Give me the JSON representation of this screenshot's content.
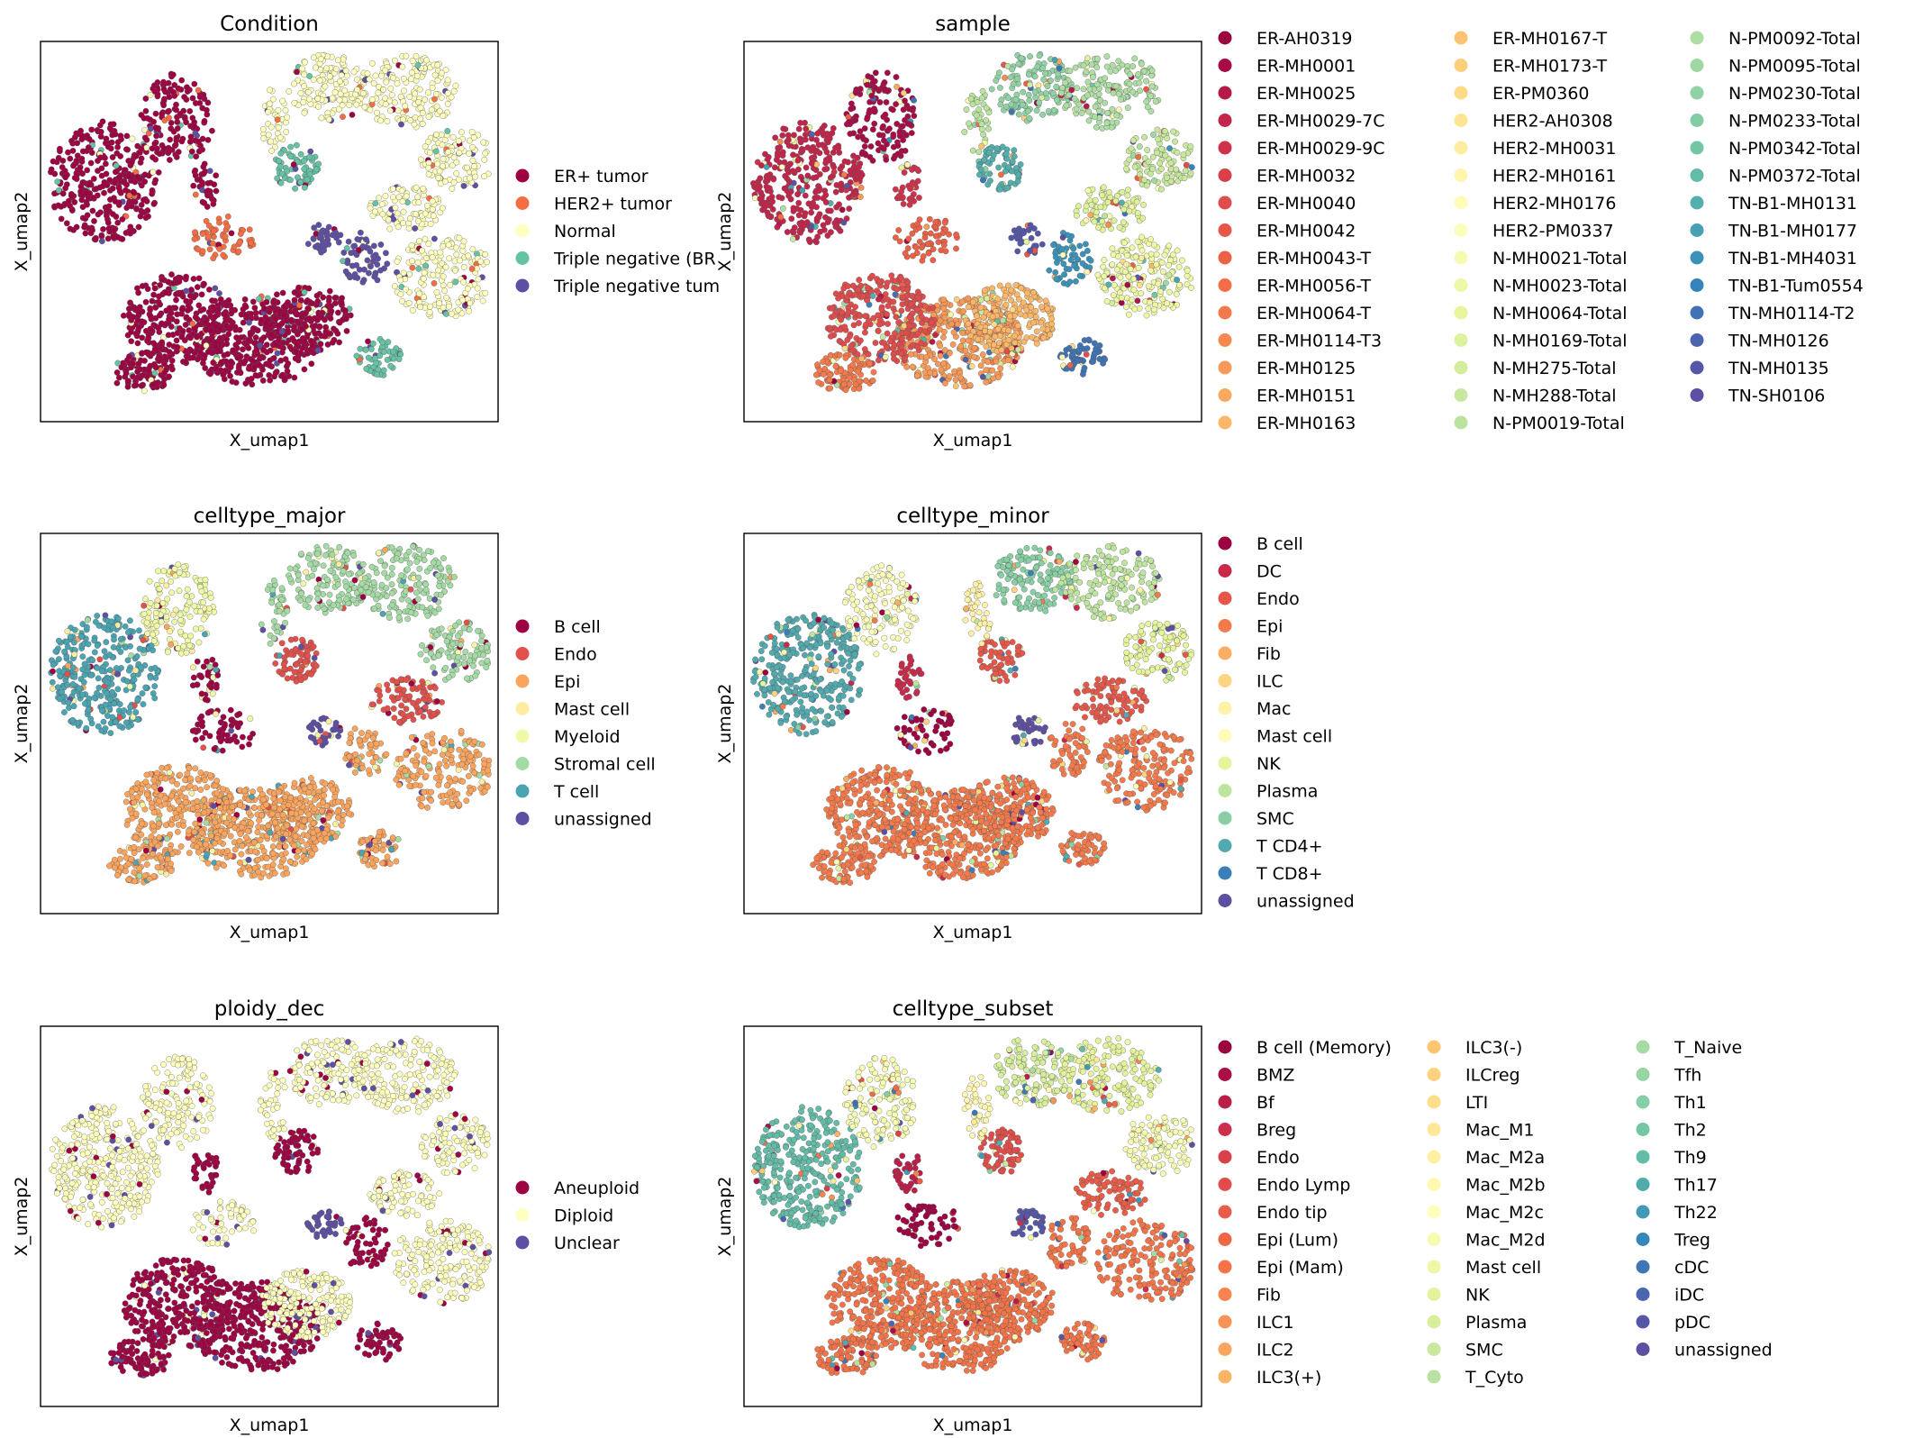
{
  "chart_data": [
    {
      "type": "scatter",
      "title": "Condition",
      "xlabel": "X_umap1",
      "ylabel": "X_umap2",
      "legend_placement": "right",
      "legend": [
        {
          "label": "ER+ tumor",
          "color": "#9e0142"
        },
        {
          "label": "HER2+ tumor",
          "color": "#f46d43"
        },
        {
          "label": "Normal",
          "color": "#ffffbf"
        },
        {
          "label": "Triple negative (BR",
          "color": "#66c2a5"
        },
        {
          "label": "Triple negative tum",
          "color": "#5e4fa2"
        }
      ]
    },
    {
      "type": "scatter",
      "title": "sample",
      "xlabel": "X_umap1",
      "ylabel": "X_umap2",
      "legend_placement": "right",
      "legend": [
        {
          "label": "ER-AH0319",
          "color": "#9e0142"
        },
        {
          "label": "ER-MH0001",
          "color": "#a70b45"
        },
        {
          "label": "ER-MH0025",
          "color": "#b41947"
        },
        {
          "label": "ER-MH0029-7C",
          "color": "#c2254a"
        },
        {
          "label": "ER-MH0029-9C",
          "color": "#cf334b"
        },
        {
          "label": "ER-MH0032",
          "color": "#d8414a"
        },
        {
          "label": "ER-MH0040",
          "color": "#df4c4b"
        },
        {
          "label": "ER-MH0042",
          "color": "#e65749"
        },
        {
          "label": "ER-MH0043-T",
          "color": "#ec6146"
        },
        {
          "label": "ER-MH0056-T",
          "color": "#f26c45"
        },
        {
          "label": "ER-MH0064-T",
          "color": "#f57a4b"
        },
        {
          "label": "ER-MH0114-T3",
          "color": "#f78951"
        },
        {
          "label": "ER-MH0125",
          "color": "#f99958"
        },
        {
          "label": "ER-MH0151",
          "color": "#fba95f"
        },
        {
          "label": "ER-MH0163",
          "color": "#fcb768"
        },
        {
          "label": "ER-MH0167-T",
          "color": "#fdc371"
        },
        {
          "label": "ER-MH0173-T",
          "color": "#fdcf7b"
        },
        {
          "label": "ER-PM0360",
          "color": "#fedc87"
        },
        {
          "label": "HER2-AH0308",
          "color": "#fee593"
        },
        {
          "label": "HER2-MH0031",
          "color": "#feeda0"
        },
        {
          "label": "HER2-MH0161",
          "color": "#fff5ad"
        },
        {
          "label": "HER2-MH0176",
          "color": "#fffbb9"
        },
        {
          "label": "HER2-PM0337",
          "color": "#fbfdbb"
        },
        {
          "label": "N-MH0021-Total",
          "color": "#f6fbb1"
        },
        {
          "label": "N-MH0023-Total",
          "color": "#eff8a5"
        },
        {
          "label": "N-MH0064-Total",
          "color": "#e8f59c"
        },
        {
          "label": "N-MH0169-Total",
          "color": "#def19b"
        },
        {
          "label": "N-MH275-Total",
          "color": "#d3ed9c"
        },
        {
          "label": "N-MH288-Total",
          "color": "#c8e89e"
        },
        {
          "label": "N-PM0019-Total",
          "color": "#bbe3a0"
        },
        {
          "label": "N-PM0092-Total",
          "color": "#aedea3"
        },
        {
          "label": "N-PM0095-Total",
          "color": "#a0d8a4"
        },
        {
          "label": "N-PM0230-Total",
          "color": "#91d2a4"
        },
        {
          "label": "N-PM0233-Total",
          "color": "#82cca5"
        },
        {
          "label": "N-PM0342-Total",
          "color": "#72c6a5"
        },
        {
          "label": "N-PM0372-Total",
          "color": "#62bca7"
        },
        {
          "label": "TN-B1-MH0131",
          "color": "#54aeac"
        },
        {
          "label": "TN-B1-MH0177",
          "color": "#47a0b3"
        },
        {
          "label": "TN-B1-MH4031",
          "color": "#3b92b8"
        },
        {
          "label": "TN-B1-Tum0554",
          "color": "#3682ba"
        },
        {
          "label": "TN-MH0114-T2",
          "color": "#4073b4"
        },
        {
          "label": "TN-MH0126",
          "color": "#4a64ae"
        },
        {
          "label": "TN-MH0135",
          "color": "#5456a8"
        },
        {
          "label": "TN-SH0106",
          "color": "#5e4fa2"
        }
      ]
    },
    {
      "type": "scatter",
      "title": "celltype_major",
      "xlabel": "X_umap1",
      "ylabel": "X_umap2",
      "legend_placement": "right",
      "legend": [
        {
          "label": "B cell",
          "color": "#9e0142"
        },
        {
          "label": "Endo",
          "color": "#e1504a"
        },
        {
          "label": "Epi",
          "color": "#fba45d"
        },
        {
          "label": "Mast cell",
          "color": "#feeda1"
        },
        {
          "label": "Myeloid",
          "color": "#f0f9a7"
        },
        {
          "label": "Stromal cell",
          "color": "#a4daa4"
        },
        {
          "label": "T cell",
          "color": "#4aa4b2"
        },
        {
          "label": "unassigned",
          "color": "#5e4fa2"
        }
      ]
    },
    {
      "type": "scatter",
      "title": "celltype_minor",
      "xlabel": "X_umap1",
      "ylabel": "X_umap2",
      "legend_placement": "right",
      "legend": [
        {
          "label": "B cell",
          "color": "#9e0142"
        },
        {
          "label": "DC",
          "color": "#c9294b"
        },
        {
          "label": "Endo",
          "color": "#e55748"
        },
        {
          "label": "Epi",
          "color": "#f57a4b"
        },
        {
          "label": "Fib",
          "color": "#fbad63"
        },
        {
          "label": "ILC",
          "color": "#fdd480"
        },
        {
          "label": "Mac",
          "color": "#fff2a8"
        },
        {
          "label": "Mast cell",
          "color": "#fbfdbb"
        },
        {
          "label": "NK",
          "color": "#e6f49b"
        },
        {
          "label": "Plasma",
          "color": "#bee5a0"
        },
        {
          "label": "SMC",
          "color": "#88cfa4"
        },
        {
          "label": "T CD4+",
          "color": "#52aaae"
        },
        {
          "label": "T CD8+",
          "color": "#3a7fb8"
        },
        {
          "label": "unassigned",
          "color": "#5e4fa2"
        }
      ]
    },
    {
      "type": "scatter",
      "title": "ploidy_dec",
      "xlabel": "X_umap1",
      "ylabel": "X_umap2",
      "legend_placement": "right",
      "legend": [
        {
          "label": "Aneuploid",
          "color": "#9e0142"
        },
        {
          "label": "Diploid",
          "color": "#ffffbf"
        },
        {
          "label": "Unclear",
          "color": "#5e4fa2"
        }
      ]
    },
    {
      "type": "scatter",
      "title": "celltype_subset",
      "xlabel": "X_umap1",
      "ylabel": "X_umap2",
      "legend_placement": "right",
      "legend": [
        {
          "label": "B cell (Memory)",
          "color": "#9e0142"
        },
        {
          "label": "BMZ",
          "color": "#ab0f46"
        },
        {
          "label": "Bf",
          "color": "#bb1f48"
        },
        {
          "label": "Breg",
          "color": "#cc304b"
        },
        {
          "label": "Endo",
          "color": "#d8404a"
        },
        {
          "label": "Endo Lymp",
          "color": "#e14e4a"
        },
        {
          "label": "Endo tip",
          "color": "#e95c47"
        },
        {
          "label": "Epi (Lum)",
          "color": "#f06744"
        },
        {
          "label": "Epi (Mam)",
          "color": "#f47448"
        },
        {
          "label": "Fib",
          "color": "#f7834f"
        },
        {
          "label": "ILC1",
          "color": "#f99456"
        },
        {
          "label": "ILC2",
          "color": "#fba55e"
        },
        {
          "label": "ILC3(+)",
          "color": "#fcb567"
        },
        {
          "label": "ILC3(-)",
          "color": "#fdc472"
        },
        {
          "label": "ILCreg",
          "color": "#fdd17d"
        },
        {
          "label": "LTI",
          "color": "#fede89"
        },
        {
          "label": "Mac_M1",
          "color": "#fee796"
        },
        {
          "label": "Mac_M2a",
          "color": "#fff0a4"
        },
        {
          "label": "Mac_M2b",
          "color": "#fff8b1"
        },
        {
          "label": "Mac_M2c",
          "color": "#fefebd"
        },
        {
          "label": "Mac_M2d",
          "color": "#f7fcb3"
        },
        {
          "label": "Mast cell",
          "color": "#eef8a6"
        },
        {
          "label": "NK",
          "color": "#e4f39b"
        },
        {
          "label": "Plasma",
          "color": "#d7ee9c"
        },
        {
          "label": "SMC",
          "color": "#c9e99e"
        },
        {
          "label": "T_Cyto",
          "color": "#b9e2a1"
        },
        {
          "label": "T_Naive",
          "color": "#a8dba4"
        },
        {
          "label": "Tfh",
          "color": "#98d5a4"
        },
        {
          "label": "Th1",
          "color": "#86cea5"
        },
        {
          "label": "Th2",
          "color": "#73c7a5"
        },
        {
          "label": "Th9",
          "color": "#62bca7"
        },
        {
          "label": "Th17",
          "color": "#51abad"
        },
        {
          "label": "Th22",
          "color": "#4299b5"
        },
        {
          "label": "Treg",
          "color": "#3687b9"
        },
        {
          "label": "cDC",
          "color": "#3e77b5"
        },
        {
          "label": "iDC",
          "color": "#4a66ae"
        },
        {
          "label": "pDC",
          "color": "#5657a7"
        },
        {
          "label": "unassigned",
          "color": "#5e4fa2"
        }
      ]
    }
  ]
}
